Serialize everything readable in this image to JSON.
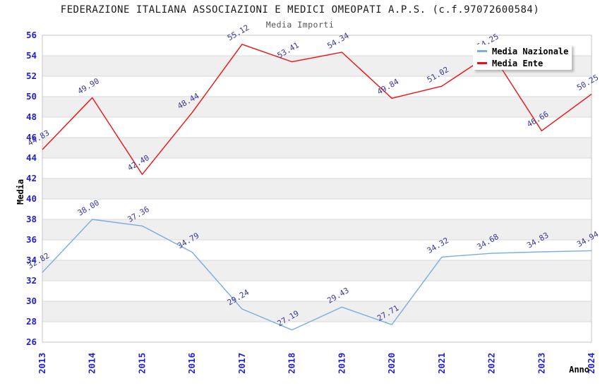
{
  "chart_data": {
    "type": "line",
    "title": "FEDERAZIONE ITALIANA ASSOCIAZIONI E MEDICI OMEOPATI A.P.S. (c.f.97072600584)",
    "subtitle": "Media Importi",
    "xlabel": "Anno",
    "ylabel": "Media",
    "categories": [
      "2013",
      "2014",
      "2015",
      "2016",
      "2017",
      "2018",
      "2019",
      "2020",
      "2021",
      "2022",
      "2023",
      "2024"
    ],
    "series": [
      {
        "name": "Media Nazionale",
        "color": "#7aade0",
        "values": [
          32.82,
          38.0,
          37.36,
          34.79,
          29.24,
          27.19,
          29.43,
          27.71,
          34.32,
          34.68,
          34.83,
          34.94
        ]
      },
      {
        "name": "Media Ente",
        "color": "#ee1111",
        "values": [
          44.83,
          49.9,
          42.4,
          48.44,
          55.12,
          53.41,
          54.34,
          49.84,
          51.02,
          54.25,
          46.66,
          50.25
        ]
      }
    ],
    "ylim": [
      26,
      56
    ],
    "ytick_step": 2,
    "grid": "horizontal-bands",
    "legend_position": "top-right",
    "colors": {
      "tick_label": "#1f1fd4",
      "data_label": "#38389b",
      "band_fill": "#efefef",
      "gridline": "#d9d9d9",
      "plot_border": "#c4c4c4",
      "axis_title": "#000000",
      "title": "#1a1a1a",
      "subtitle": "#555555",
      "background": "#ffffff"
    }
  }
}
